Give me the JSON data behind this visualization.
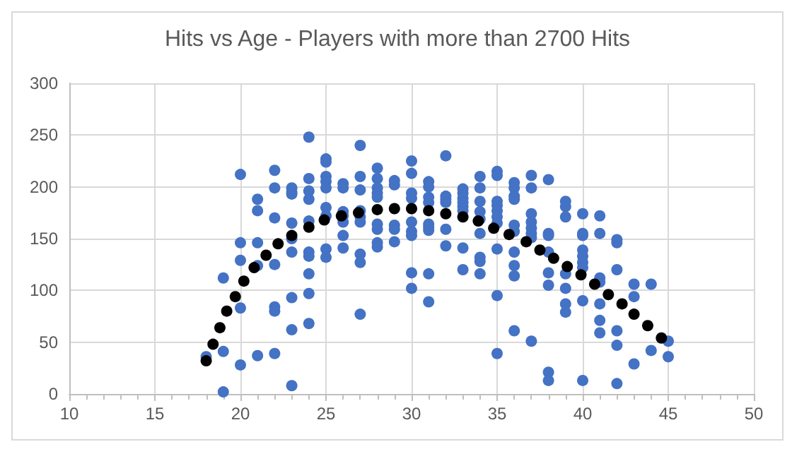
{
  "chart_data": {
    "type": "scatter",
    "title": "Hits vs Age - Players with more than 2700 Hits",
    "xlim": [
      10,
      50
    ],
    "xticks": [
      10,
      15,
      20,
      25,
      30,
      35,
      40,
      45,
      50
    ],
    "ylim": [
      0,
      300
    ],
    "yticks": [
      0,
      50,
      100,
      150,
      200,
      250,
      300
    ],
    "grid": true,
    "marker": "circle",
    "series": [
      {
        "color": "#4472c4",
        "x": [
          18,
          19,
          19,
          19,
          20,
          20,
          20,
          20,
          20,
          21,
          21,
          21,
          21,
          21,
          22,
          22,
          22,
          22,
          22,
          22,
          22,
          23,
          23,
          23,
          23,
          23,
          23,
          23,
          23,
          23,
          24,
          24,
          24,
          24,
          24,
          24,
          24,
          24,
          24,
          24,
          25,
          25,
          25,
          25,
          25,
          25,
          25,
          25,
          25,
          26,
          26,
          26,
          26,
          26,
          26,
          26,
          27,
          27,
          27,
          27,
          27,
          27,
          27,
          27,
          27,
          28,
          28,
          28,
          28,
          28,
          28,
          28,
          28,
          28,
          29,
          29,
          29,
          29,
          29,
          30,
          30,
          30,
          30,
          30,
          30,
          30,
          30,
          30,
          31,
          31,
          31,
          31,
          31,
          31,
          31,
          31,
          31,
          32,
          32,
          32,
          32,
          32,
          32,
          33,
          33,
          33,
          33,
          33,
          33,
          33,
          33,
          34,
          34,
          34,
          34,
          34,
          34,
          34,
          34,
          34,
          35,
          35,
          35,
          35,
          35,
          35,
          35,
          35,
          35,
          35,
          36,
          36,
          36,
          36,
          36,
          36,
          36,
          36,
          36,
          36,
          37,
          37,
          37,
          37,
          37,
          37,
          37,
          37,
          38,
          38,
          38,
          38,
          38,
          38,
          38,
          38,
          39,
          39,
          39,
          39,
          39,
          39,
          39,
          40,
          40,
          40,
          40,
          40,
          40,
          40,
          40,
          40,
          41,
          41,
          41,
          41,
          41,
          41,
          41,
          42,
          42,
          42,
          42,
          42,
          42,
          43,
          43,
          43,
          44,
          44,
          45,
          45
        ],
        "values": [
          36,
          112,
          41,
          2,
          212,
          146,
          129,
          83,
          28,
          188,
          177,
          146,
          124,
          37,
          216,
          199,
          170,
          125,
          84,
          80,
          39,
          199,
          195,
          193,
          165,
          150,
          137,
          93,
          62,
          8,
          248,
          208,
          196,
          188,
          167,
          137,
          133,
          116,
          97,
          68,
          227,
          224,
          210,
          205,
          199,
          180,
          172,
          140,
          132,
          203,
          199,
          176,
          172,
          166,
          153,
          141,
          240,
          210,
          197,
          177,
          171,
          166,
          135,
          127,
          77,
          218,
          208,
          199,
          194,
          190,
          164,
          159,
          146,
          142,
          206,
          202,
          163,
          159,
          147,
          225,
          213,
          194,
          189,
          166,
          157,
          153,
          117,
          102,
          205,
          200,
          190,
          185,
          164,
          161,
          158,
          116,
          89,
          230,
          191,
          188,
          185,
          159,
          143,
          198,
          194,
          189,
          185,
          181,
          177,
          141,
          120,
          210,
          199,
          186,
          176,
          169,
          155,
          132,
          128,
          116,
          215,
          211,
          186,
          182,
          177,
          171,
          165,
          140,
          95,
          39,
          204,
          199,
          191,
          188,
          163,
          157,
          137,
          124,
          114,
          61,
          211,
          199,
          174,
          166,
          160,
          155,
          151,
          51,
          207,
          155,
          153,
          137,
          117,
          105,
          21,
          13,
          186,
          181,
          171,
          116,
          102,
          87,
          79,
          174,
          155,
          153,
          139,
          133,
          127,
          122,
          90,
          13,
          172,
          155,
          112,
          108,
          87,
          71,
          59,
          149,
          146,
          120,
          61,
          47,
          10,
          106,
          94,
          29,
          106,
          42,
          51,
          36
        ]
      },
      {
        "color": "#000000",
        "x": [
          18.0,
          18.4,
          18.8,
          19.2,
          19.7,
          20.2,
          20.8,
          21.5,
          22.2,
          23.0,
          24.0,
          24.9,
          25.9,
          26.9,
          28.0,
          29.0,
          30.0,
          31.0,
          32.0,
          33.0,
          33.9,
          34.8,
          35.7,
          36.7,
          37.5,
          38.3,
          39.1,
          39.9,
          40.7,
          41.5,
          42.3,
          43.0,
          43.8,
          44.6
        ],
        "values": [
          32,
          48,
          64,
          80,
          94,
          109,
          122,
          134,
          145,
          153,
          161,
          168,
          172,
          175,
          178,
          179,
          179,
          177,
          174,
          171,
          167,
          160,
          154,
          147,
          139,
          131,
          123,
          115,
          106,
          96,
          87,
          77,
          66,
          54
        ]
      }
    ]
  }
}
